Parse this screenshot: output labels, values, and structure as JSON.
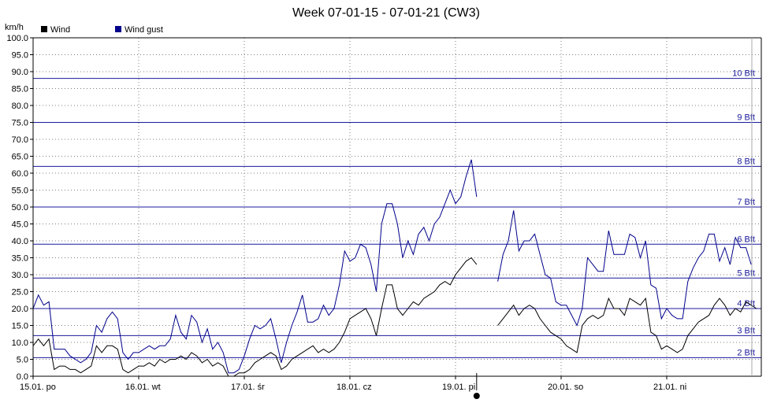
{
  "chart_data": {
    "type": "line",
    "title": "Week 07-01-15 - 07-01-21 (CW3)",
    "ylabel": "km/h",
    "ylim": [
      0,
      100
    ],
    "y_ticks": [
      "0.0",
      "5.0",
      "10.0",
      "15.0",
      "20.0",
      "25.0",
      "30.0",
      "35.0",
      "40.0",
      "45.0",
      "50.0",
      "55.0",
      "60.0",
      "65.0",
      "70.0",
      "75.0",
      "80.0",
      "85.0",
      "90.0",
      "95.0",
      "100.0"
    ],
    "x_tick_labels": [
      "15.01. po",
      "16.01. wt",
      "17.01. śr",
      "18.01. cz",
      "19.01. pi",
      "20.01. so",
      "21.01. ni"
    ],
    "xlim": [
      0,
      7
    ],
    "grid": true,
    "legend_position": "top-left",
    "beaufort_lines": [
      {
        "label": "2 Bft",
        "value": 5.5
      },
      {
        "label": "3 Bft",
        "value": 12
      },
      {
        "label": "4 Bft",
        "value": 20
      },
      {
        "label": "5 Bft",
        "value": 29
      },
      {
        "label": "6 Bft",
        "value": 39
      },
      {
        "label": "7 Bft",
        "value": 50
      },
      {
        "label": "8 Bft",
        "value": 62
      },
      {
        "label": "9 Bft",
        "value": 75
      },
      {
        "label": "10 Bft",
        "value": 88
      }
    ],
    "series": [
      {
        "name": "Wind",
        "color": "#000000",
        "segments": [
          [
            [
              0.0,
              9
            ],
            [
              0.05,
              11
            ],
            [
              0.1,
              9
            ],
            [
              0.15,
              11
            ],
            [
              0.2,
              2
            ],
            [
              0.25,
              3
            ],
            [
              0.3,
              3
            ],
            [
              0.35,
              2
            ],
            [
              0.4,
              2
            ],
            [
              0.45,
              1
            ],
            [
              0.5,
              2
            ],
            [
              0.55,
              3
            ],
            [
              0.6,
              9
            ],
            [
              0.65,
              7
            ],
            [
              0.7,
              9
            ],
            [
              0.75,
              9
            ],
            [
              0.8,
              8
            ],
            [
              0.85,
              2
            ],
            [
              0.9,
              1
            ],
            [
              0.95,
              2
            ],
            [
              1.0,
              3
            ],
            [
              1.05,
              3
            ],
            [
              1.1,
              4
            ],
            [
              1.15,
              3
            ],
            [
              1.2,
              5
            ],
            [
              1.25,
              4
            ],
            [
              1.3,
              5
            ],
            [
              1.35,
              5
            ],
            [
              1.4,
              6
            ],
            [
              1.45,
              5
            ],
            [
              1.5,
              7
            ],
            [
              1.55,
              6
            ],
            [
              1.6,
              4
            ],
            [
              1.65,
              5
            ],
            [
              1.7,
              3
            ],
            [
              1.75,
              4
            ],
            [
              1.8,
              3
            ],
            [
              1.85,
              0
            ],
            [
              1.9,
              0
            ],
            [
              1.95,
              1
            ],
            [
              2.0,
              1
            ],
            [
              2.05,
              2
            ],
            [
              2.1,
              4
            ],
            [
              2.15,
              5
            ],
            [
              2.2,
              6
            ],
            [
              2.25,
              7
            ],
            [
              2.3,
              6
            ],
            [
              2.35,
              2
            ],
            [
              2.4,
              3
            ],
            [
              2.45,
              5
            ],
            [
              2.5,
              6
            ],
            [
              2.55,
              7
            ],
            [
              2.6,
              8
            ],
            [
              2.65,
              9
            ],
            [
              2.7,
              7
            ],
            [
              2.75,
              8
            ],
            [
              2.8,
              7
            ],
            [
              2.85,
              8
            ],
            [
              2.9,
              10
            ],
            [
              2.95,
              13
            ],
            [
              3.0,
              17
            ],
            [
              3.05,
              18
            ],
            [
              3.1,
              19
            ],
            [
              3.15,
              20
            ],
            [
              3.2,
              17
            ],
            [
              3.25,
              12
            ],
            [
              3.3,
              20
            ],
            [
              3.35,
              27
            ],
            [
              3.4,
              27
            ],
            [
              3.45,
              20
            ],
            [
              3.5,
              18
            ],
            [
              3.55,
              20
            ],
            [
              3.6,
              22
            ],
            [
              3.65,
              21
            ],
            [
              3.7,
              23
            ],
            [
              3.75,
              24
            ],
            [
              3.8,
              25
            ],
            [
              3.85,
              27
            ],
            [
              3.9,
              28
            ],
            [
              3.95,
              27
            ],
            [
              4.0,
              30
            ],
            [
              4.05,
              32
            ],
            [
              4.1,
              34
            ],
            [
              4.15,
              35
            ],
            [
              4.2,
              33
            ]
          ],
          [
            [
              4.4,
              15
            ],
            [
              4.45,
              17
            ],
            [
              4.5,
              19
            ],
            [
              4.55,
              21
            ],
            [
              4.6,
              18
            ],
            [
              4.65,
              20
            ],
            [
              4.7,
              21
            ],
            [
              4.75,
              20
            ],
            [
              4.8,
              17
            ],
            [
              4.85,
              15
            ],
            [
              4.9,
              13
            ],
            [
              4.95,
              12
            ],
            [
              5.0,
              11
            ],
            [
              5.05,
              9
            ],
            [
              5.1,
              8
            ],
            [
              5.15,
              7
            ],
            [
              5.2,
              15
            ],
            [
              5.25,
              17
            ],
            [
              5.3,
              18
            ],
            [
              5.35,
              17
            ],
            [
              5.4,
              18
            ],
            [
              5.45,
              23
            ],
            [
              5.5,
              20
            ],
            [
              5.55,
              20
            ],
            [
              5.6,
              18
            ],
            [
              5.65,
              23
            ],
            [
              5.7,
              22
            ],
            [
              5.75,
              21
            ],
            [
              5.8,
              23
            ],
            [
              5.85,
              13
            ],
            [
              5.9,
              12
            ],
            [
              5.95,
              8
            ],
            [
              6.0,
              9
            ],
            [
              6.05,
              8
            ],
            [
              6.1,
              7
            ],
            [
              6.15,
              8
            ],
            [
              6.2,
              12
            ],
            [
              6.25,
              14
            ],
            [
              6.3,
              16
            ],
            [
              6.35,
              17
            ],
            [
              6.4,
              18
            ],
            [
              6.45,
              21
            ],
            [
              6.5,
              23
            ],
            [
              6.55,
              21
            ],
            [
              6.6,
              18
            ],
            [
              6.65,
              20
            ],
            [
              6.7,
              19
            ],
            [
              6.75,
              22
            ],
            [
              6.8,
              21
            ],
            [
              6.85,
              20
            ]
          ]
        ]
      },
      {
        "name": "Wind gust",
        "color": "#00008b",
        "segments": [
          [
            [
              0.0,
              20
            ],
            [
              0.05,
              24
            ],
            [
              0.1,
              21
            ],
            [
              0.15,
              22
            ],
            [
              0.2,
              8
            ],
            [
              0.25,
              8
            ],
            [
              0.3,
              8
            ],
            [
              0.35,
              6
            ],
            [
              0.4,
              5
            ],
            [
              0.45,
              4
            ],
            [
              0.5,
              5
            ],
            [
              0.55,
              7
            ],
            [
              0.6,
              15
            ],
            [
              0.65,
              13
            ],
            [
              0.7,
              17
            ],
            [
              0.75,
              19
            ],
            [
              0.8,
              17
            ],
            [
              0.85,
              7
            ],
            [
              0.9,
              5
            ],
            [
              0.95,
              7
            ],
            [
              1.0,
              7
            ],
            [
              1.05,
              8
            ],
            [
              1.1,
              9
            ],
            [
              1.15,
              8
            ],
            [
              1.2,
              9
            ],
            [
              1.25,
              9
            ],
            [
              1.3,
              11
            ],
            [
              1.35,
              18
            ],
            [
              1.4,
              13
            ],
            [
              1.45,
              11
            ],
            [
              1.5,
              18
            ],
            [
              1.55,
              16
            ],
            [
              1.6,
              10
            ],
            [
              1.65,
              14
            ],
            [
              1.7,
              8
            ],
            [
              1.75,
              10
            ],
            [
              1.8,
              7
            ],
            [
              1.85,
              1
            ],
            [
              1.9,
              1
            ],
            [
              1.95,
              2
            ],
            [
              2.0,
              6
            ],
            [
              2.05,
              11
            ],
            [
              2.1,
              15
            ],
            [
              2.15,
              14
            ],
            [
              2.2,
              15
            ],
            [
              2.25,
              17
            ],
            [
              2.3,
              11
            ],
            [
              2.35,
              4
            ],
            [
              2.4,
              10
            ],
            [
              2.45,
              15
            ],
            [
              2.5,
              19
            ],
            [
              2.55,
              24
            ],
            [
              2.6,
              16
            ],
            [
              2.65,
              16
            ],
            [
              2.7,
              17
            ],
            [
              2.75,
              21
            ],
            [
              2.8,
              18
            ],
            [
              2.85,
              20
            ],
            [
              2.9,
              27
            ],
            [
              2.95,
              37
            ],
            [
              3.0,
              34
            ],
            [
              3.05,
              35
            ],
            [
              3.1,
              39
            ],
            [
              3.15,
              38
            ],
            [
              3.2,
              33
            ],
            [
              3.25,
              25
            ],
            [
              3.3,
              45
            ],
            [
              3.35,
              51
            ],
            [
              3.4,
              51
            ],
            [
              3.45,
              45
            ],
            [
              3.5,
              35
            ],
            [
              3.55,
              40
            ],
            [
              3.6,
              36
            ],
            [
              3.65,
              42
            ],
            [
              3.7,
              44
            ],
            [
              3.75,
              40
            ],
            [
              3.8,
              45
            ],
            [
              3.85,
              47
            ],
            [
              3.9,
              51
            ],
            [
              3.95,
              55
            ],
            [
              4.0,
              51
            ],
            [
              4.05,
              53
            ],
            [
              4.1,
              59
            ],
            [
              4.15,
              64
            ],
            [
              4.2,
              53
            ]
          ],
          [
            [
              4.4,
              28
            ],
            [
              4.45,
              36
            ],
            [
              4.5,
              40
            ],
            [
              4.55,
              49
            ],
            [
              4.6,
              37
            ],
            [
              4.65,
              40
            ],
            [
              4.7,
              40
            ],
            [
              4.75,
              42
            ],
            [
              4.8,
              36
            ],
            [
              4.85,
              30
            ],
            [
              4.9,
              29
            ],
            [
              4.95,
              22
            ],
            [
              5.0,
              21
            ],
            [
              5.05,
              21
            ],
            [
              5.1,
              18
            ],
            [
              5.15,
              15
            ],
            [
              5.2,
              20
            ],
            [
              5.25,
              35
            ],
            [
              5.3,
              33
            ],
            [
              5.35,
              31
            ],
            [
              5.4,
              31
            ],
            [
              5.45,
              43
            ],
            [
              5.5,
              36
            ],
            [
              5.55,
              36
            ],
            [
              5.6,
              36
            ],
            [
              5.65,
              42
            ],
            [
              5.7,
              41
            ],
            [
              5.75,
              35
            ],
            [
              5.8,
              40
            ],
            [
              5.85,
              27
            ],
            [
              5.9,
              26
            ],
            [
              5.95,
              17
            ],
            [
              6.0,
              20
            ],
            [
              6.05,
              18
            ],
            [
              6.1,
              17
            ],
            [
              6.15,
              17
            ],
            [
              6.2,
              28
            ],
            [
              6.25,
              32
            ],
            [
              6.3,
              35
            ],
            [
              6.35,
              37
            ],
            [
              6.4,
              42
            ],
            [
              6.45,
              42
            ],
            [
              6.5,
              34
            ],
            [
              6.55,
              38
            ],
            [
              6.6,
              33
            ],
            [
              6.65,
              41
            ],
            [
              6.7,
              38
            ],
            [
              6.75,
              38
            ],
            [
              6.8,
              33
            ]
          ]
        ]
      }
    ],
    "marker": {
      "x": 4.2,
      "label": "19.01. pi"
    }
  }
}
